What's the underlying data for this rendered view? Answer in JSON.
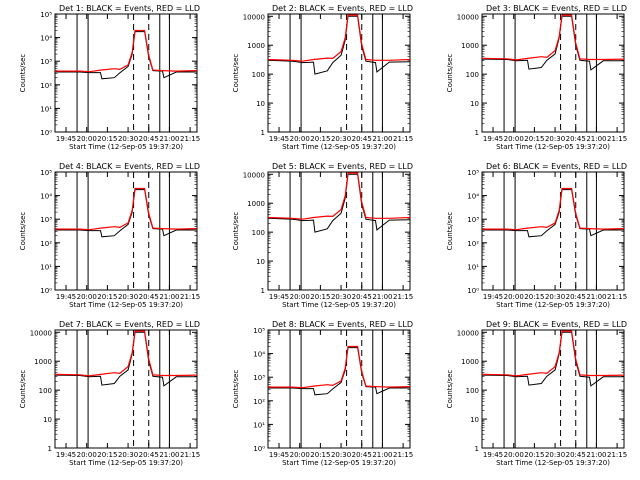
{
  "figure": {
    "xlabel": "Start Time (12-Sep-05 19:37:20)",
    "ylabel": "Counts/sec",
    "x_tick_labels": [
      "19:45",
      "20:00",
      "20:15",
      "20:30",
      "20:45",
      "21:00",
      "21:15"
    ],
    "legend_text": "BLACK = Events, RED = LLD",
    "colors": {
      "events": "#000000",
      "lld": "#ff0000",
      "background": "#ffffff"
    }
  },
  "chart_data": [
    {
      "type": "line",
      "title": "Det 1:  BLACK = Events, RED = LLD",
      "y_scale": "log",
      "ylim": [
        1,
        100000
      ],
      "y_tick_style": "exp",
      "y_ticks": [
        1,
        10,
        100,
        1000,
        10000,
        100000
      ],
      "xlim": [
        "19:37",
        "21:20"
      ],
      "grid": false,
      "event_markers_solid": [
        "19:53",
        "20:01",
        "20:53",
        "21:00"
      ],
      "event_markers_dashed": [
        "20:34",
        "20:45"
      ],
      "series": [
        {
          "x": [
            "19:37",
            "19:55",
            "20:02",
            "20:10",
            "20:11",
            "20:20",
            "20:24",
            "20:30",
            "20:33",
            "20:35",
            "20:42",
            "20:45",
            "20:48",
            "20:55",
            "20:56",
            "21:05",
            "21:20"
          ],
          "y": [
            350,
            350,
            330,
            330,
            180,
            200,
            320,
            600,
            2000,
            18000,
            18000,
            1500,
            400,
            380,
            200,
            350,
            350
          ]
        },
        {
          "x": [
            "19:37",
            "19:55",
            "20:02",
            "20:10",
            "20:20",
            "20:24",
            "20:30",
            "20:33",
            "20:35",
            "20:42",
            "20:45",
            "20:48",
            "20:55",
            "21:05",
            "21:20"
          ],
          "y": [
            380,
            380,
            360,
            420,
            480,
            450,
            700,
            2400,
            20000,
            20000,
            1800,
            420,
            400,
            380,
            400
          ]
        }
      ]
    },
    {
      "type": "line",
      "title": "Det 2:  BLACK = Events, RED = LLD",
      "y_scale": "log",
      "ylim": [
        1,
        12000
      ],
      "y_tick_style": "plain",
      "y_ticks": [
        1,
        10,
        100,
        1000,
        10000
      ],
      "xlim": [
        "19:37",
        "21:20"
      ],
      "grid": false,
      "event_markers_solid": [
        "19:53",
        "20:01",
        "20:53",
        "21:00"
      ],
      "event_markers_dashed": [
        "20:34",
        "20:45"
      ],
      "series": [
        {
          "x": [
            "19:37",
            "19:55",
            "20:02",
            "20:10",
            "20:11",
            "20:20",
            "20:24",
            "20:30",
            "20:33",
            "20:35",
            "20:42",
            "20:45",
            "20:48",
            "20:55",
            "20:56",
            "21:05",
            "21:20"
          ],
          "y": [
            300,
            280,
            250,
            260,
            100,
            130,
            250,
            450,
            1500,
            10000,
            10000,
            900,
            280,
            250,
            120,
            260,
            270
          ]
        },
        {
          "x": [
            "19:37",
            "19:55",
            "20:02",
            "20:10",
            "20:20",
            "20:24",
            "20:30",
            "20:33",
            "20:35",
            "20:42",
            "20:45",
            "20:48",
            "20:55",
            "21:05",
            "21:20"
          ],
          "y": [
            320,
            300,
            280,
            320,
            360,
            350,
            600,
            1800,
            11000,
            11000,
            1100,
            320,
            300,
            300,
            320
          ]
        }
      ]
    },
    {
      "type": "line",
      "title": "Det 3:  BLACK = Events, RED = LLD",
      "y_scale": "log",
      "ylim": [
        1,
        12000
      ],
      "y_tick_style": "plain",
      "y_ticks": [
        1,
        10,
        100,
        1000,
        10000
      ],
      "xlim": [
        "19:37",
        "21:20"
      ],
      "grid": false,
      "event_markers_solid": [
        "19:53",
        "20:01",
        "20:53",
        "21:00"
      ],
      "event_markers_dashed": [
        "20:34",
        "20:45"
      ],
      "series": [
        {
          "x": [
            "19:37",
            "19:55",
            "20:02",
            "20:10",
            "20:11",
            "20:20",
            "20:24",
            "20:30",
            "20:33",
            "20:35",
            "20:42",
            "20:45",
            "20:48",
            "20:55",
            "20:56",
            "21:05",
            "21:20"
          ],
          "y": [
            330,
            320,
            290,
            300,
            150,
            170,
            300,
            500,
            1800,
            10000,
            10000,
            1000,
            300,
            280,
            140,
            290,
            290
          ]
        },
        {
          "x": [
            "19:37",
            "19:55",
            "20:02",
            "20:10",
            "20:20",
            "20:24",
            "20:30",
            "20:33",
            "20:35",
            "20:42",
            "20:45",
            "20:48",
            "20:55",
            "21:05",
            "21:20"
          ],
          "y": [
            350,
            340,
            310,
            350,
            400,
            380,
            650,
            2000,
            11000,
            11000,
            1200,
            340,
            320,
            320,
            330
          ]
        }
      ]
    },
    {
      "type": "line",
      "title": "Det 4:  BLACK = Events, RED = LLD",
      "y_scale": "log",
      "ylim": [
        1,
        100000
      ],
      "y_tick_style": "exp",
      "y_ticks": [
        1,
        10,
        100,
        1000,
        10000,
        100000
      ],
      "xlim": [
        "19:37",
        "21:20"
      ],
      "grid": false,
      "event_markers_solid": [
        "19:53",
        "20:01",
        "20:53",
        "21:00"
      ],
      "event_markers_dashed": [
        "20:34",
        "20:45"
      ],
      "series": [
        {
          "x": [
            "19:37",
            "19:55",
            "20:02",
            "20:10",
            "20:11",
            "20:20",
            "20:24",
            "20:30",
            "20:33",
            "20:35",
            "20:42",
            "20:45",
            "20:48",
            "20:55",
            "20:56",
            "21:05",
            "21:20"
          ],
          "y": [
            350,
            350,
            330,
            330,
            180,
            200,
            320,
            600,
            2000,
            18000,
            18000,
            1500,
            400,
            380,
            200,
            350,
            350
          ]
        },
        {
          "x": [
            "19:37",
            "19:55",
            "20:02",
            "20:10",
            "20:20",
            "20:24",
            "20:30",
            "20:33",
            "20:35",
            "20:42",
            "20:45",
            "20:48",
            "20:55",
            "21:05",
            "21:20"
          ],
          "y": [
            380,
            380,
            360,
            420,
            480,
            450,
            700,
            2400,
            20000,
            20000,
            1800,
            420,
            400,
            380,
            400
          ]
        }
      ]
    },
    {
      "type": "line",
      "title": "Det 5:  BLACK = Events, RED = LLD",
      "y_scale": "log",
      "ylim": [
        1,
        12000
      ],
      "y_tick_style": "plain",
      "y_ticks": [
        1,
        10,
        100,
        1000,
        10000
      ],
      "xlim": [
        "19:37",
        "21:20"
      ],
      "grid": false,
      "event_markers_solid": [
        "19:53",
        "20:01",
        "20:53",
        "21:00"
      ],
      "event_markers_dashed": [
        "20:34",
        "20:45"
      ],
      "series": [
        {
          "x": [
            "19:37",
            "19:55",
            "20:02",
            "20:10",
            "20:11",
            "20:20",
            "20:24",
            "20:30",
            "20:33",
            "20:35",
            "20:42",
            "20:45",
            "20:48",
            "20:55",
            "20:56",
            "21:05",
            "21:20"
          ],
          "y": [
            300,
            280,
            250,
            260,
            100,
            130,
            250,
            450,
            1500,
            10000,
            10000,
            900,
            280,
            250,
            120,
            260,
            270
          ]
        },
        {
          "x": [
            "19:37",
            "19:55",
            "20:02",
            "20:10",
            "20:20",
            "20:24",
            "20:30",
            "20:33",
            "20:35",
            "20:42",
            "20:45",
            "20:48",
            "20:55",
            "21:05",
            "21:20"
          ],
          "y": [
            320,
            300,
            280,
            320,
            360,
            350,
            600,
            1800,
            11000,
            11000,
            1100,
            320,
            300,
            300,
            320
          ]
        }
      ]
    },
    {
      "type": "line",
      "title": "Det 6:  BLACK = Events, RED = LLD",
      "y_scale": "log",
      "ylim": [
        1,
        100000
      ],
      "y_tick_style": "exp",
      "y_ticks": [
        1,
        10,
        100,
        1000,
        10000,
        100000
      ],
      "xlim": [
        "19:37",
        "21:20"
      ],
      "grid": false,
      "event_markers_solid": [
        "19:53",
        "20:01",
        "20:53",
        "21:00"
      ],
      "event_markers_dashed": [
        "20:34",
        "20:45"
      ],
      "series": [
        {
          "x": [
            "19:37",
            "19:55",
            "20:02",
            "20:10",
            "20:11",
            "20:20",
            "20:24",
            "20:30",
            "20:33",
            "20:35",
            "20:42",
            "20:45",
            "20:48",
            "20:55",
            "20:56",
            "21:05",
            "21:20"
          ],
          "y": [
            350,
            350,
            330,
            330,
            180,
            200,
            320,
            600,
            2000,
            18000,
            18000,
            1500,
            400,
            380,
            200,
            350,
            350
          ]
        },
        {
          "x": [
            "19:37",
            "19:55",
            "20:02",
            "20:10",
            "20:20",
            "20:24",
            "20:30",
            "20:33",
            "20:35",
            "20:42",
            "20:45",
            "20:48",
            "20:55",
            "21:05",
            "21:20"
          ],
          "y": [
            380,
            380,
            360,
            420,
            480,
            450,
            700,
            2400,
            20000,
            20000,
            1800,
            420,
            400,
            380,
            400
          ]
        }
      ]
    },
    {
      "type": "line",
      "title": "Det 7:  BLACK = Events, RED = LLD",
      "y_scale": "log",
      "ylim": [
        1,
        12000
      ],
      "y_tick_style": "plain",
      "y_ticks": [
        1,
        10,
        100,
        1000,
        10000
      ],
      "xlim": [
        "19:37",
        "21:20"
      ],
      "grid": false,
      "event_markers_solid": [
        "19:53",
        "20:01",
        "20:53",
        "21:00"
      ],
      "event_markers_dashed": [
        "20:34",
        "20:45"
      ],
      "series": [
        {
          "x": [
            "19:37",
            "19:55",
            "20:02",
            "20:10",
            "20:11",
            "20:20",
            "20:24",
            "20:30",
            "20:33",
            "20:35",
            "20:42",
            "20:45",
            "20:48",
            "20:55",
            "20:56",
            "21:05",
            "21:20"
          ],
          "y": [
            330,
            320,
            290,
            300,
            150,
            170,
            300,
            500,
            1800,
            10000,
            10000,
            1000,
            300,
            280,
            140,
            290,
            290
          ]
        },
        {
          "x": [
            "19:37",
            "19:55",
            "20:02",
            "20:10",
            "20:20",
            "20:24",
            "20:30",
            "20:33",
            "20:35",
            "20:42",
            "20:45",
            "20:48",
            "20:55",
            "21:05",
            "21:20"
          ],
          "y": [
            350,
            340,
            310,
            350,
            400,
            380,
            650,
            2000,
            11000,
            11000,
            1200,
            340,
            320,
            320,
            330
          ]
        }
      ]
    },
    {
      "type": "line",
      "title": "Det 8:  BLACK = Events, RED = LLD",
      "y_scale": "log",
      "ylim": [
        1,
        100000
      ],
      "y_tick_style": "exp",
      "y_ticks": [
        1,
        10,
        100,
        1000,
        10000,
        100000
      ],
      "xlim": [
        "19:37",
        "21:20"
      ],
      "grid": false,
      "event_markers_solid": [
        "19:53",
        "20:01",
        "20:53",
        "21:00"
      ],
      "event_markers_dashed": [
        "20:34",
        "20:45"
      ],
      "series": [
        {
          "x": [
            "19:37",
            "19:55",
            "20:02",
            "20:10",
            "20:11",
            "20:20",
            "20:24",
            "20:30",
            "20:33",
            "20:35",
            "20:42",
            "20:45",
            "20:48",
            "20:55",
            "20:56",
            "21:05",
            "21:20"
          ],
          "y": [
            350,
            350,
            330,
            330,
            180,
            200,
            320,
            600,
            2000,
            18000,
            18000,
            1500,
            400,
            380,
            200,
            350,
            350
          ]
        },
        {
          "x": [
            "19:37",
            "19:55",
            "20:02",
            "20:10",
            "20:20",
            "20:24",
            "20:30",
            "20:33",
            "20:35",
            "20:42",
            "20:45",
            "20:48",
            "20:55",
            "21:05",
            "21:20"
          ],
          "y": [
            380,
            380,
            360,
            420,
            480,
            450,
            700,
            2400,
            20000,
            20000,
            1800,
            420,
            400,
            380,
            400
          ]
        }
      ]
    },
    {
      "type": "line",
      "title": "Det 9:  BLACK = Events, RED = LLD",
      "y_scale": "log",
      "ylim": [
        1,
        12000
      ],
      "y_tick_style": "plain",
      "y_ticks": [
        1,
        10,
        100,
        1000,
        10000
      ],
      "xlim": [
        "19:37",
        "21:20"
      ],
      "grid": false,
      "event_markers_solid": [
        "19:53",
        "20:01",
        "20:53",
        "21:00"
      ],
      "event_markers_dashed": [
        "20:34",
        "20:45"
      ],
      "series": [
        {
          "x": [
            "19:37",
            "19:55",
            "20:02",
            "20:10",
            "20:11",
            "20:20",
            "20:24",
            "20:30",
            "20:33",
            "20:35",
            "20:42",
            "20:45",
            "20:48",
            "20:55",
            "20:56",
            "21:05",
            "21:20"
          ],
          "y": [
            330,
            320,
            290,
            300,
            150,
            170,
            300,
            500,
            1800,
            10000,
            10000,
            1000,
            300,
            280,
            140,
            290,
            290
          ]
        },
        {
          "x": [
            "19:37",
            "19:55",
            "20:02",
            "20:10",
            "20:20",
            "20:24",
            "20:30",
            "20:33",
            "20:35",
            "20:42",
            "20:45",
            "20:48",
            "20:55",
            "21:05",
            "21:20"
          ],
          "y": [
            350,
            340,
            310,
            350,
            400,
            380,
            650,
            2000,
            11000,
            11000,
            1200,
            340,
            320,
            320,
            330
          ]
        }
      ]
    }
  ]
}
